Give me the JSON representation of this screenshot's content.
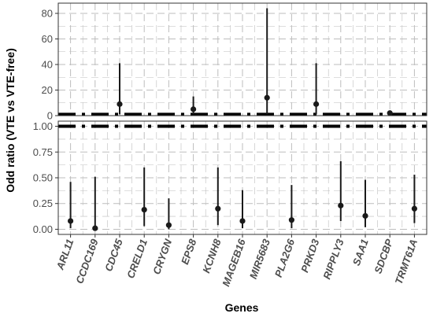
{
  "chart_data": {
    "type": "scatter",
    "xlabel": "Genes",
    "ylabel": "Odd ratio (VTE vs  VTE-free)",
    "reference_line": 1,
    "panels": [
      {
        "name": "upper",
        "ylim": [
          0,
          88
        ],
        "yticks": [
          "0",
          "20",
          "40",
          "60",
          "80"
        ]
      },
      {
        "name": "lower",
        "ylim": [
          -0.05,
          1.05
        ],
        "yticks": [
          "0.00",
          "0.25",
          "0.50",
          "0.75",
          "1.00"
        ]
      }
    ],
    "genes": [
      "ARL11",
      "CCDC169",
      "CDC45",
      "CRELD1",
      "CRYGN",
      "EPS8",
      "KCNH8",
      "MAGEB16",
      "MIR5683",
      "PLA2G6",
      "PRKD3",
      "RIPPLY3",
      "SAA1",
      "SDCBP",
      "TRMT61A"
    ],
    "points": [
      {
        "gene": "ARL11",
        "panel": "lower",
        "or": 0.08,
        "low": 0.01,
        "high": 0.46
      },
      {
        "gene": "CCDC169",
        "panel": "lower",
        "or": 0.01,
        "low": 0.0,
        "high": 0.51
      },
      {
        "gene": "CDC45",
        "panel": "upper",
        "or": 9.0,
        "low": 1.0,
        "high": 41.0
      },
      {
        "gene": "CRELD1",
        "panel": "lower",
        "or": 0.19,
        "low": 0.03,
        "high": 0.6
      },
      {
        "gene": "CRYGN",
        "panel": "lower",
        "or": 0.04,
        "low": 0.0,
        "high": 0.3
      },
      {
        "gene": "EPS8",
        "panel": "upper",
        "or": 5.0,
        "low": 1.0,
        "high": 15.0
      },
      {
        "gene": "KCNH8",
        "panel": "lower",
        "or": 0.2,
        "low": 0.04,
        "high": 0.6
      },
      {
        "gene": "MAGEB16",
        "panel": "lower",
        "or": 0.08,
        "low": 0.01,
        "high": 0.38
      },
      {
        "gene": "MIR5683",
        "panel": "upper",
        "or": 14.0,
        "low": 1.0,
        "high": 84.0
      },
      {
        "gene": "PLA2G6",
        "panel": "lower",
        "or": 0.09,
        "low": 0.01,
        "high": 0.43
      },
      {
        "gene": "PRKD3",
        "panel": "upper",
        "or": 9.0,
        "low": 1.0,
        "high": 41.0
      },
      {
        "gene": "RIPPLY3",
        "panel": "lower",
        "or": 0.23,
        "low": 0.08,
        "high": 0.66
      },
      {
        "gene": "SAA1",
        "panel": "lower",
        "or": 0.13,
        "low": 0.02,
        "high": 0.48
      },
      {
        "gene": "SDCBP",
        "panel": "upper",
        "or": 2.0,
        "low": 1.2,
        "high": 2.6
      },
      {
        "gene": "TRMT61A",
        "panel": "lower",
        "or": 0.2,
        "low": 0.06,
        "high": 0.53
      }
    ],
    "grid": true,
    "colors": {
      "point": "#1a1a1a",
      "grid": "#bdbdbd",
      "frame": "#333333",
      "reference": "#000000"
    }
  }
}
